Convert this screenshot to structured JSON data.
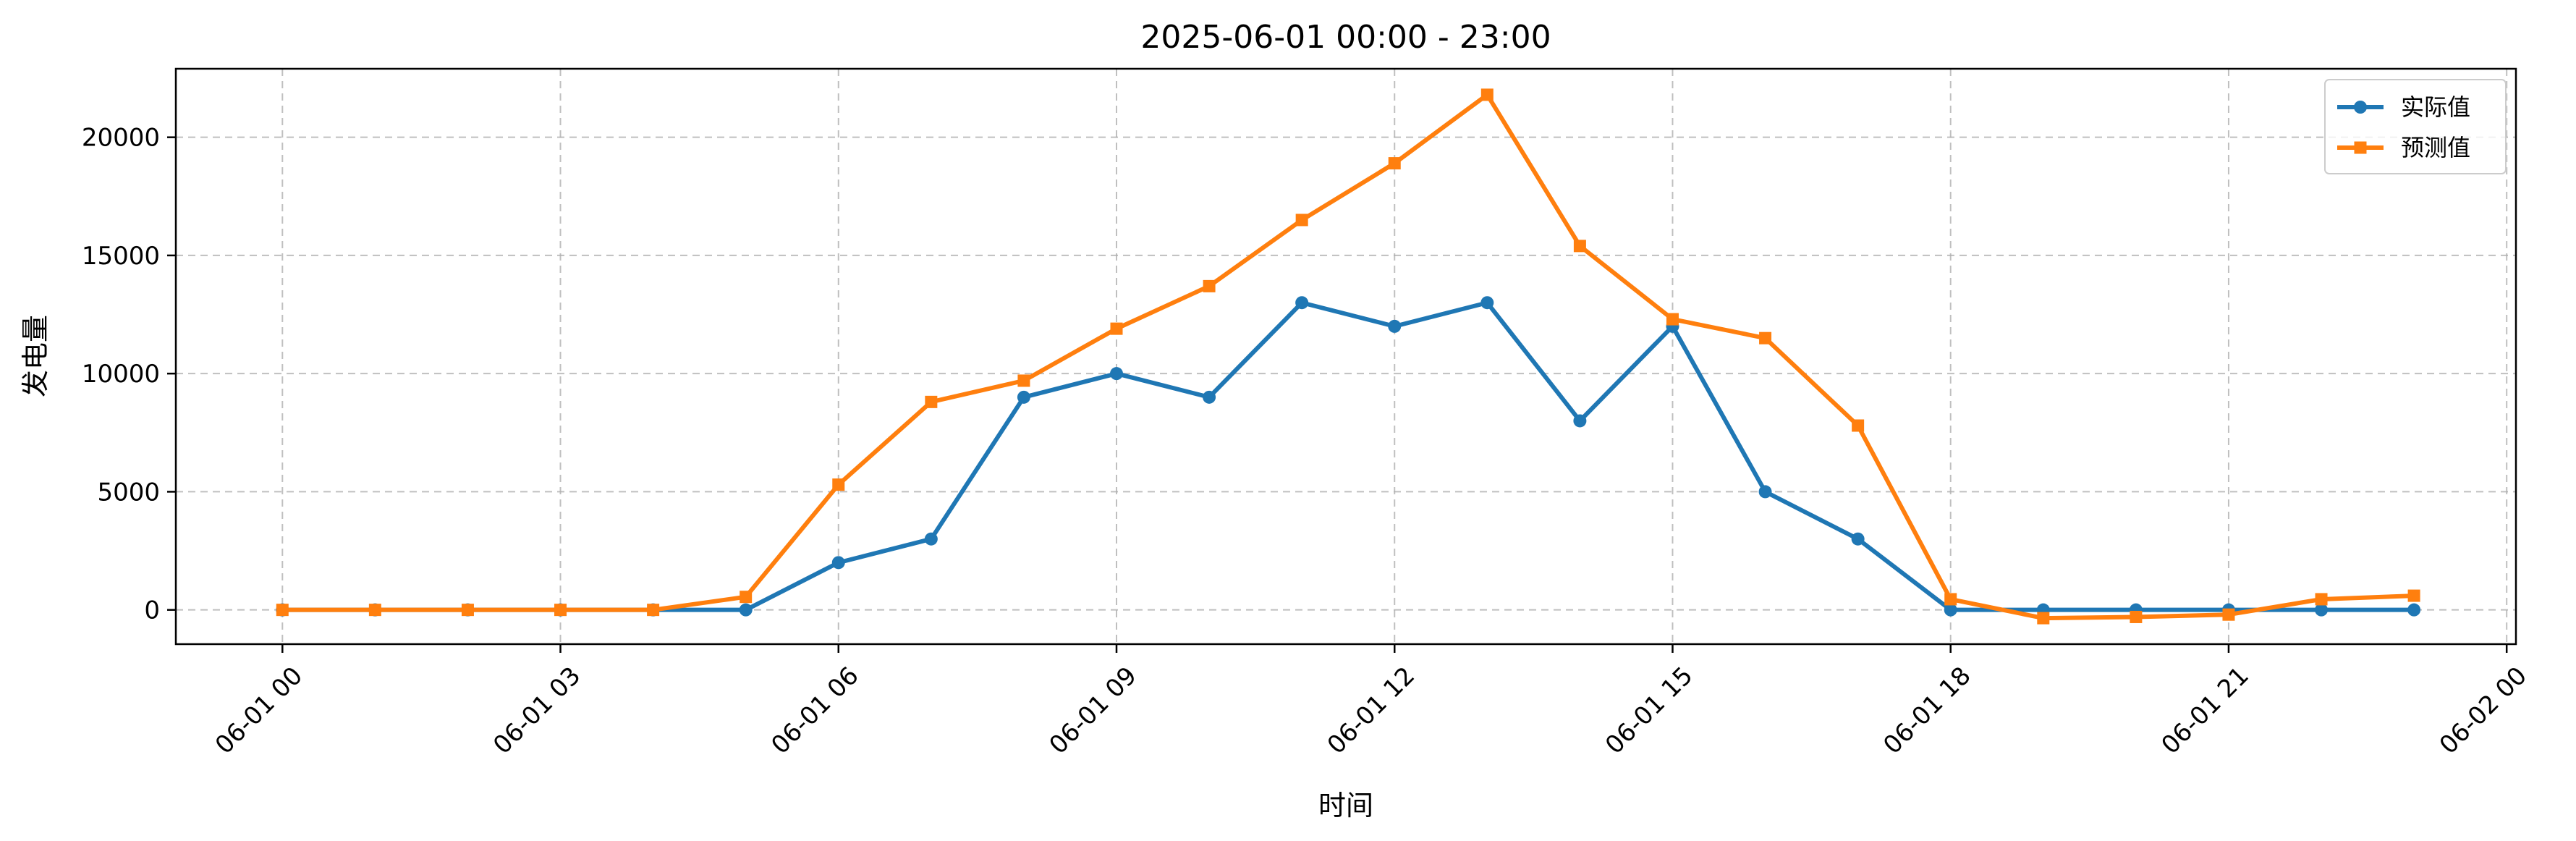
{
  "chart_data": {
    "type": "line",
    "title": "2025-06-01 00:00 - 23:00",
    "xlabel": "时间",
    "ylabel": "发电量",
    "x": [
      0,
      1,
      2,
      3,
      4,
      5,
      6,
      7,
      8,
      9,
      10,
      11,
      12,
      13,
      14,
      15,
      16,
      17,
      18,
      19,
      20,
      21,
      22,
      23
    ],
    "xlim": [
      -1.15,
      24.1
    ],
    "ylim": [
      -1450,
      22900
    ],
    "xticks": [
      {
        "value": 0,
        "label": "06-01 00"
      },
      {
        "value": 3,
        "label": "06-01 03"
      },
      {
        "value": 6,
        "label": "06-01 06"
      },
      {
        "value": 9,
        "label": "06-01 09"
      },
      {
        "value": 12,
        "label": "06-01 12"
      },
      {
        "value": 15,
        "label": "06-01 15"
      },
      {
        "value": 18,
        "label": "06-01 18"
      },
      {
        "value": 21,
        "label": "06-01 21"
      },
      {
        "value": 24,
        "label": "06-02 00"
      }
    ],
    "yticks": [
      {
        "value": 0,
        "label": "0"
      },
      {
        "value": 5000,
        "label": "5000"
      },
      {
        "value": 10000,
        "label": "10000"
      },
      {
        "value": 15000,
        "label": "15000"
      },
      {
        "value": 20000,
        "label": "20000"
      }
    ],
    "grid": true,
    "legend_position": "top-right",
    "series": [
      {
        "name": "实际值",
        "color": "#1f77b4",
        "marker": "circle",
        "values": [
          0,
          0,
          0,
          0,
          0,
          0,
          2000,
          3000,
          9000,
          10000,
          9000,
          13000,
          12000,
          13000,
          8000,
          12000,
          5000,
          3000,
          0,
          0,
          0,
          0,
          0,
          0
        ]
      },
      {
        "name": "预测值",
        "color": "#ff7f0e",
        "marker": "square",
        "values": [
          0,
          0,
          0,
          0,
          0,
          550,
          5300,
          8800,
          9700,
          11900,
          13700,
          16500,
          18900,
          21800,
          15400,
          12300,
          11500,
          7800,
          450,
          -350,
          -300,
          -200,
          450,
          600
        ]
      }
    ]
  }
}
